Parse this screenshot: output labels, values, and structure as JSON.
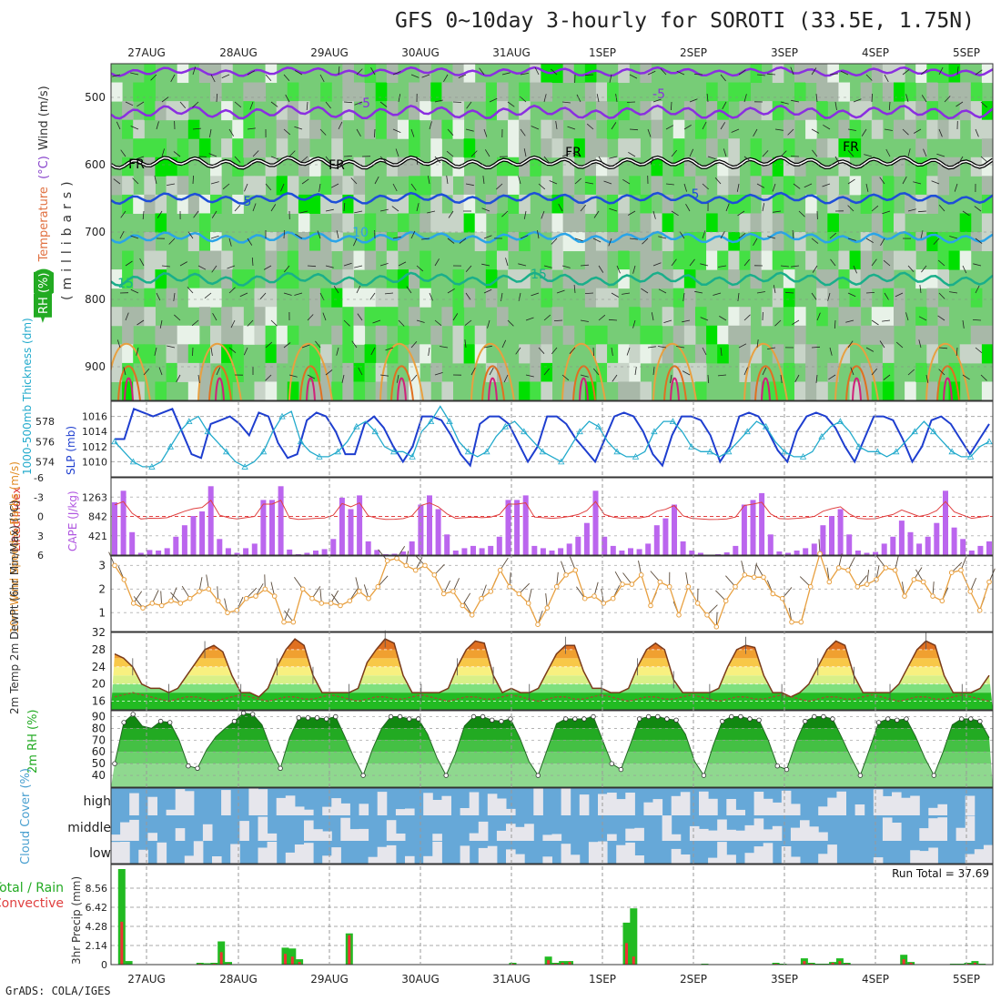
{
  "title": "GFS 0~10day 3-hourly for SOROTI (33.5E, 1.75N)",
  "credit": "GrADS: COLA/IGES",
  "date_labels": [
    "27AUG",
    "28AUG",
    "29AUG",
    "30AUG",
    "31AUG",
    "1SEP",
    "2SEP",
    "3SEP",
    "4SEP",
    "5SEP"
  ],
  "chart_data": [
    {
      "type": "heatmap",
      "panel": "upper-air",
      "ylabel_parts": [
        {
          "text": "RH (%)",
          "color": "#22aa22"
        },
        {
          "text": "Temperature",
          "color": "#e07040"
        },
        {
          "text": "(°C)",
          "color": "#8844cc"
        },
        {
          "text": "Wind (m/s)",
          "color": "#333333"
        }
      ],
      "ylabel2": "(millibars)",
      "y_ticks": [
        500,
        600,
        700,
        800,
        900
      ],
      "ylim": [
        450,
        950
      ],
      "contour_labels": [
        "-5",
        "FR",
        "5",
        "10",
        "15"
      ]
    },
    {
      "type": "line",
      "panel": "slp-thickness",
      "ylabel_left": "1000-500mb Thickness (dm)",
      "ylabel_right": "SLP (mb)",
      "left_ticks": [
        574,
        576,
        578
      ],
      "right_ticks": [
        1010,
        1012,
        1014,
        1016
      ],
      "series": [
        {
          "name": "SLP (mb)",
          "color": "#1e3ecf",
          "values": [
            1013,
            1013,
            1017,
            1016.5,
            1016,
            1016.5,
            1017,
            1014,
            1011,
            1010.5,
            1015,
            1015.5,
            1016,
            1015,
            1013.5,
            1016.5,
            1016,
            1012.5,
            1010.5,
            1011,
            1015.5,
            1016.5,
            1016,
            1014,
            1011,
            1011,
            1015,
            1016,
            1014.5,
            1012,
            1010,
            1012,
            1016,
            1016,
            1015.5,
            1013.5,
            1011,
            1009.5,
            1015,
            1016,
            1016,
            1015,
            1012.5,
            1010,
            1012,
            1016,
            1016,
            1015,
            1013,
            1011.5,
            1010,
            1013,
            1016,
            1016.5,
            1016,
            1014,
            1011,
            1009.5,
            1013.5,
            1016,
            1016,
            1015.5,
            1013.5,
            1010,
            1012,
            1016,
            1016.5,
            1016,
            1014,
            1011.5,
            1010,
            1014,
            1016,
            1016.5,
            1016,
            1014.5,
            1012,
            1010,
            1013,
            1016,
            1016,
            1015.5,
            1013,
            1010,
            1012,
            1015.5,
            1016,
            1015,
            1013,
            1011,
            1013,
            1015
          ]
        },
        {
          "name": "1000-500mb Thickness (dm)",
          "color": "#22aacc",
          "values": [
            576,
            575,
            574,
            573.5,
            573.5,
            574,
            575.5,
            577,
            578,
            578.5,
            577,
            576,
            575,
            574,
            573.5,
            574,
            575,
            577,
            578.5,
            579,
            576,
            575,
            574.5,
            574.5,
            575,
            576,
            577.5,
            578,
            577,
            575.5,
            575,
            575,
            574.5,
            577,
            578,
            579.5,
            578,
            576,
            575,
            574.5,
            575,
            576.5,
            577.5,
            578,
            577,
            576,
            575,
            574.5,
            574,
            575.5,
            577,
            578,
            577.5,
            576,
            575,
            574.5,
            574.5,
            575,
            577,
            578,
            578,
            577,
            575.5,
            575,
            575,
            574.5,
            575,
            576,
            577,
            578,
            577.5,
            576,
            575,
            574.5,
            574.5,
            575,
            576.5,
            577.5,
            578,
            577,
            575.5,
            575,
            575,
            574.5,
            575,
            576,
            577,
            578,
            577,
            576,
            575,
            574.5,
            574.5,
            575.5,
            576
          ]
        }
      ]
    },
    {
      "type": "bar",
      "panel": "cape-lifted-index",
      "ylabel_left": "Lifted Index",
      "ylabel_right": "CAPE (J/kg)",
      "li_ticks": [
        -6,
        -3,
        0,
        3,
        6
      ],
      "cape_ticks": [
        421,
        842,
        1263
      ],
      "cape_ylim": [
        0,
        1684
      ],
      "cape_values": [
        1150,
        1400,
        500,
        50,
        110,
        100,
        150,
        400,
        650,
        850,
        950,
        1500,
        350,
        150,
        50,
        150,
        250,
        1200,
        1200,
        1500,
        120,
        20,
        50,
        100,
        130,
        350,
        1250,
        1000,
        1300,
        300,
        110,
        20,
        30,
        80,
        300,
        1100,
        1300,
        1000,
        450,
        100,
        150,
        200,
        150,
        200,
        400,
        1200,
        1200,
        1300,
        200,
        150,
        100,
        150,
        250,
        400,
        700,
        1400,
        400,
        200,
        100,
        150,
        130,
        250,
        650,
        800,
        1100,
        300,
        100,
        50,
        10,
        20,
        60,
        200,
        1100,
        1200,
        1350,
        450,
        80,
        50,
        100,
        150,
        250,
        650,
        850,
        1000,
        450,
        100,
        50,
        70,
        250,
        400,
        750,
        500,
        250,
        400,
        700,
        1400,
        600,
        350,
        100,
        200,
        300
      ]
    },
    {
      "type": "line",
      "panel": "10m-wind",
      "ylabel": "10m Wind Speed & Barbs (m/s)",
      "y_ticks": [
        1,
        2,
        3
      ],
      "ylim": [
        0.2,
        3.4
      ],
      "values": [
        3,
        2.4,
        1.4,
        1.2,
        1.4,
        1.3,
        1.5,
        1.4,
        1.6,
        1.9,
        2,
        1.5,
        1,
        1.1,
        1.6,
        1.7,
        2,
        1.7,
        0.6,
        0.6,
        2,
        1.6,
        1.4,
        1.4,
        1.3,
        1.5,
        1.9,
        1.6,
        2.1,
        3.2,
        3.3,
        3,
        2.8,
        3,
        2.6,
        1.8,
        1.9,
        1.3,
        0.9,
        1.6,
        1.9,
        2.8,
        2.1,
        1.8,
        1.4,
        0.5,
        1.2,
        2.1,
        2.6,
        2.8,
        1.6,
        1.7,
        1.4,
        1.6,
        2.2,
        2.2,
        2.6,
        1.3,
        2.3,
        2.1,
        0.9,
        2.1,
        1.4,
        0.9,
        0.4,
        1.5,
        2.1,
        2.6,
        2.5,
        2.5,
        1.8,
        1.6,
        0.6,
        0.6,
        2.1,
        3.5,
        2.3,
        2.9,
        2.8,
        2.1,
        2.2,
        2.4,
        2.9,
        2.8,
        1.7,
        2.4,
        2.3,
        1.7,
        1.5,
        2.7,
        2.8,
        1.9,
        1.1,
        2.3
      ]
    },
    {
      "type": "area",
      "panel": "2m-temp",
      "ylabel": "2m Temp 2m DewPt (6hr Min/Max) (°C)",
      "y_ticks": [
        16,
        20,
        24,
        28,
        32
      ],
      "ylim": [
        14,
        32
      ],
      "temp_values": [
        27,
        26,
        24,
        20,
        19,
        19,
        18,
        19,
        22,
        25,
        28,
        29,
        27.5,
        22,
        18,
        18,
        17,
        19,
        24,
        28,
        30.5,
        29,
        22,
        18,
        18,
        18,
        18,
        19,
        25,
        28,
        30.5,
        29.5,
        22,
        18,
        18,
        18,
        18,
        19,
        24,
        28,
        30,
        29.5,
        22,
        18,
        19,
        18,
        18,
        19,
        23,
        27,
        29,
        29,
        23,
        19,
        19,
        18,
        18,
        19,
        24,
        28,
        29.5,
        28,
        21,
        18,
        18,
        18,
        18,
        19,
        24,
        28,
        29,
        28.5,
        22,
        18,
        18,
        17,
        18,
        20,
        24,
        28,
        30,
        29,
        22,
        18,
        18,
        18,
        18,
        20,
        24,
        28,
        30,
        29,
        22,
        18,
        18,
        18,
        19,
        22
      ],
      "dew_values": [
        17,
        17.5,
        18,
        17.5,
        17,
        16.5,
        16,
        16.5,
        17,
        17,
        16.5,
        16,
        16.5,
        17,
        17.5,
        17,
        16.5,
        16,
        16.5,
        17,
        17,
        16.5,
        16.5,
        17,
        17.5,
        17,
        16.5,
        16,
        16.5,
        17,
        17,
        16.5,
        16.5,
        17,
        17.5,
        17,
        16.5,
        16,
        16.5,
        17,
        17,
        16.5,
        16.5,
        17,
        17.5,
        17,
        16.5,
        16,
        16.5,
        17,
        17,
        16.5,
        16.5,
        17,
        17.5,
        17,
        16.5,
        16,
        16.5,
        17,
        17,
        16.5,
        16.5,
        17,
        17.5,
        17,
        16.5,
        16,
        16.5,
        17,
        17,
        16.5,
        16.5,
        17,
        17.5,
        17,
        16.5,
        16,
        16.5,
        17,
        17,
        16.5,
        16.5,
        17,
        17.5,
        17,
        16.5,
        16,
        16.5,
        17,
        17,
        16.5,
        16.5,
        17,
        17.5,
        17,
        16.5,
        16
      ]
    },
    {
      "type": "area",
      "panel": "2m-rh",
      "ylabel": "2m RH (%)",
      "y_ticks": [
        40,
        50,
        60,
        70,
        80,
        90
      ],
      "ylim": [
        30,
        95
      ],
      "values": [
        50,
        85,
        92,
        82,
        80,
        86,
        85,
        70,
        48,
        46,
        62,
        73,
        80,
        86,
        93,
        92,
        83,
        62,
        46,
        72,
        89,
        89,
        89,
        88,
        90,
        73,
        55,
        40,
        62,
        80,
        90,
        90,
        88,
        88,
        75,
        55,
        40,
        58,
        82,
        90,
        90,
        87,
        86,
        88,
        72,
        52,
        40,
        62,
        84,
        88,
        88,
        88,
        90,
        70,
        50,
        45,
        66,
        88,
        90,
        90,
        88,
        87,
        75,
        52,
        40,
        65,
        86,
        90,
        90,
        88,
        87,
        70,
        48,
        45,
        68,
        86,
        90,
        90,
        88,
        72,
        55,
        40,
        62,
        85,
        88,
        87,
        88,
        73,
        55,
        40,
        60,
        83,
        88,
        88,
        86,
        72
      ]
    },
    {
      "type": "heatmap",
      "panel": "cloud-cover",
      "ylabel": "Cloud Cover (%)",
      "level_labels": [
        "high",
        "middle",
        "low"
      ]
    },
    {
      "type": "bar",
      "panel": "precip",
      "ylabel_left": "Total / Rain",
      "ylabel_left2": "Convective",
      "ylabel": "3hr Precip (mm)",
      "y_ticks": [
        0,
        2.14,
        4.28,
        6.42,
        8.56
      ],
      "ylim": [
        0,
        10.7
      ],
      "run_total": "Run Total = 37.69",
      "total_values": [
        0,
        10.7,
        0.4,
        0,
        0,
        0,
        0,
        0,
        0,
        0,
        0,
        0,
        0.2,
        0.15,
        0.2,
        2.6,
        0.3,
        0,
        0,
        0,
        0,
        0,
        0,
        0,
        1.9,
        1.8,
        0.6,
        0,
        0,
        0,
        0,
        0,
        0,
        3.5,
        0,
        0,
        0,
        0,
        0,
        0,
        0,
        0,
        0,
        0,
        0,
        0,
        0,
        0,
        0,
        0,
        0,
        0,
        0,
        0,
        0,
        0,
        0.2,
        0,
        0,
        0,
        0,
        0.9,
        0.2,
        0.4,
        0.4,
        0,
        0,
        0,
        0,
        0,
        0,
        0,
        4.7,
        6.3,
        0,
        0,
        0,
        0,
        0,
        0,
        0,
        0,
        0,
        0.1,
        0,
        0,
        0,
        0,
        0,
        0,
        0,
        0,
        0,
        0.2,
        0.1,
        0,
        0,
        0.7,
        0.2,
        0.1,
        0.1,
        0.3,
        0.7,
        0.2,
        0,
        0,
        0,
        0,
        0,
        0,
        0,
        1.1,
        0.3,
        0,
        0,
        0,
        0,
        0,
        0.1,
        0.1,
        0.2,
        0.4,
        0.1,
        0
      ],
      "conv_values": [
        0,
        4.8,
        0,
        0,
        0,
        0,
        0,
        0,
        0,
        0,
        0,
        0,
        0.1,
        0.05,
        0.1,
        1.4,
        0.1,
        0,
        0,
        0,
        0,
        0,
        0,
        0,
        1.2,
        0.9,
        0.3,
        0,
        0,
        0,
        0,
        0,
        0,
        3.3,
        0,
        0,
        0,
        0,
        0,
        0,
        0,
        0,
        0,
        0,
        0,
        0,
        0,
        0,
        0,
        0,
        0,
        0,
        0,
        0,
        0,
        0,
        0.1,
        0,
        0,
        0,
        0,
        0.5,
        0.1,
        0.2,
        0.3,
        0,
        0,
        0,
        0,
        0,
        0,
        0,
        2.4,
        0.9,
        0,
        0,
        0,
        0,
        0,
        0,
        0,
        0,
        0,
        0.05,
        0,
        0,
        0,
        0,
        0,
        0,
        0,
        0,
        0,
        0.1,
        0.05,
        0,
        0,
        0.4,
        0.1,
        0.05,
        0.05,
        0.2,
        0.4,
        0.1,
        0,
        0,
        0,
        0,
        0,
        0,
        0,
        0.6,
        0.2,
        0,
        0,
        0,
        0,
        0,
        0.05,
        0.05,
        0.1,
        0.2,
        0.05,
        0
      ]
    }
  ]
}
